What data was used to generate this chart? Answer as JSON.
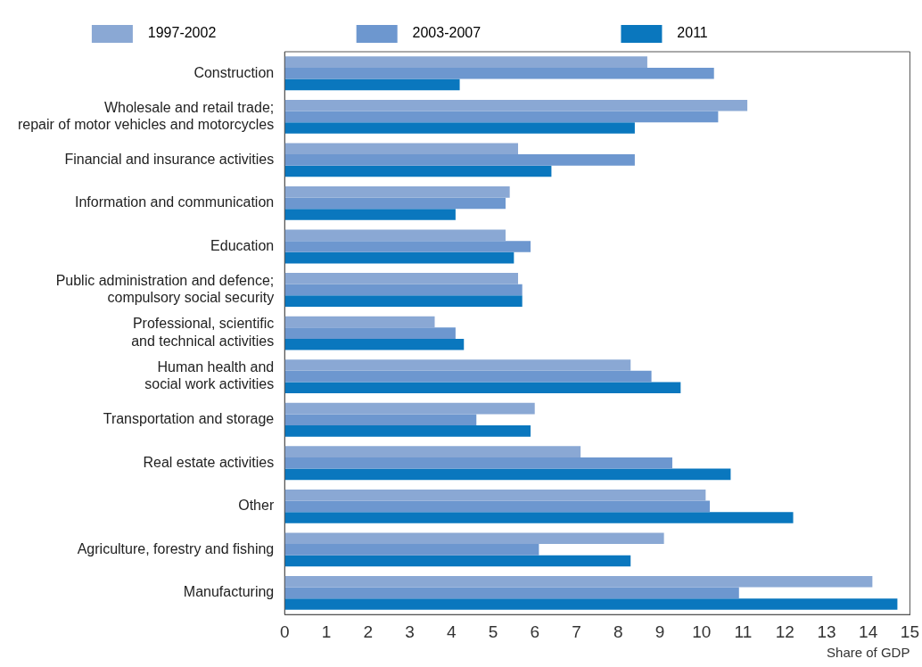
{
  "chart_data": {
    "type": "bar",
    "orientation": "horizontal",
    "xlabel": "Share of GDP",
    "categories": [
      "Construction",
      "Wholesale and retail trade;\nrepair of motor vehicles and motorcycles",
      "Financial and insurance activities",
      "Information and communication",
      "Education",
      "Public administration and defence;\ncompulsory social security",
      "Professional, scientific\nand technical activities",
      "Human health and\nsocial work activities",
      "Transportation and storage",
      "Real estate activities",
      "Other",
      "Agriculture, forestry and fishing",
      "Manufacturing"
    ],
    "series": [
      {
        "name": "1997-2002",
        "color": "#8aa8d4",
        "values": [
          8.7,
          11.1,
          5.6,
          5.4,
          5.3,
          5.6,
          3.6,
          8.3,
          6.0,
          7.1,
          10.1,
          9.1,
          14.1
        ]
      },
      {
        "name": "2003-2007",
        "color": "#6d97cf",
        "values": [
          10.3,
          10.4,
          8.4,
          5.3,
          5.9,
          5.7,
          4.1,
          8.8,
          4.6,
          9.3,
          10.2,
          6.1,
          10.9
        ]
      },
      {
        "name": "2011",
        "color": "#0a77be",
        "values": [
          4.2,
          8.4,
          6.4,
          4.1,
          5.5,
          5.7,
          4.3,
          9.5,
          5.9,
          10.7,
          12.2,
          8.3,
          14.7
        ]
      }
    ],
    "xlim": [
      0,
      15
    ],
    "xticks": [
      0,
      1,
      2,
      3,
      4,
      5,
      6,
      7,
      8,
      9,
      10,
      11,
      12,
      13,
      14,
      15
    ],
    "grid": false,
    "legend": "top"
  }
}
